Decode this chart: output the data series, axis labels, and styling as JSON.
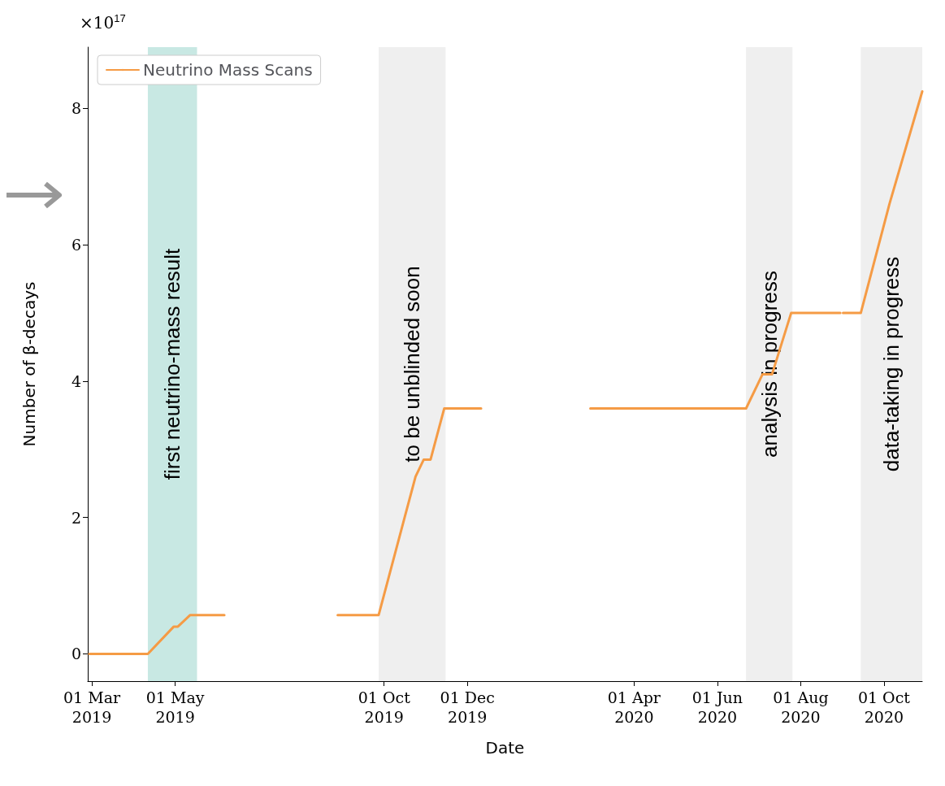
{
  "chart_data": {
    "type": "line",
    "xlabel": "Date",
    "ylabel": "Number of β-decays",
    "annotations": [
      "×10$^{17}$"
    ],
    "xlim": [
      "2019-02-26",
      "2020-10-29"
    ],
    "xticks": [
      {
        "value": "2019-03-01",
        "label": "01 Mar\n2019"
      },
      {
        "value": "2019-05-01",
        "label": "01 May\n2019"
      },
      {
        "value": "2019-10-01",
        "label": "01 Oct\n2019"
      },
      {
        "value": "2019-12-01",
        "label": "01 Dec\n2019"
      },
      {
        "value": "2020-04-01",
        "label": "01 Apr\n2020"
      },
      {
        "value": "2020-06-01",
        "label": "01 Jun\n2020"
      },
      {
        "value": "2020-08-01",
        "label": "01 Aug\n2020"
      },
      {
        "value": "2020-10-01",
        "label": "01 Oct\n2020"
      }
    ],
    "ylim": [
      -0.4,
      8.9
    ],
    "yticks": [
      0,
      2,
      4,
      6,
      8
    ],
    "series": [
      {
        "name": "Neutrino Mass Scans",
        "color": "#f59b45",
        "x": [
          "2019-02-27",
          "2019-04-11",
          "2019-04-30",
          "2019-05-03",
          "2019-05-12",
          "2019-06-06",
          "2019-07-15",
          "2019-08-28",
          "2019-09-27",
          "2019-10-16",
          "2019-10-24",
          "2019-10-30",
          "2019-11-04",
          "2019-11-14",
          "2019-12-11",
          "2020-01-20",
          "2020-02-29",
          "2020-06-22",
          "2020-07-04",
          "2020-07-11",
          "2020-07-25",
          "2020-08-30",
          "2020-08-31",
          "2020-09-01",
          "2020-09-14",
          "2020-10-05",
          "2020-10-29"
        ],
        "values": [
          0,
          0,
          0.4,
          0.4,
          0.57,
          0.57,
          null,
          0.57,
          0.57,
          2.0,
          2.6,
          2.85,
          2.85,
          3.6,
          3.6,
          null,
          3.6,
          3.6,
          4.1,
          4.1,
          5.0,
          5.0,
          null,
          5.0,
          5.0,
          6.6,
          8.25
        ]
      }
    ],
    "bands": [
      {
        "axis": "x",
        "from": "2019-04-11",
        "to": "2019-05-17",
        "label": "first neutrino-mass result",
        "color": "#c8e8e3"
      },
      {
        "axis": "x",
        "from": "2019-09-27",
        "to": "2019-11-15",
        "label": "to be unblinded soon",
        "color": "#efefef"
      },
      {
        "axis": "x",
        "from": "2020-06-22",
        "to": "2020-07-26",
        "label": "analysis in progress",
        "color": "#efefef"
      },
      {
        "axis": "x",
        "from": "2020-09-14",
        "to": "2020-10-29",
        "label": "data-taking in progress",
        "color": "#efefef"
      }
    ],
    "legend": "top left",
    "grid": false,
    "marker": "none",
    "line_style": "solid"
  }
}
